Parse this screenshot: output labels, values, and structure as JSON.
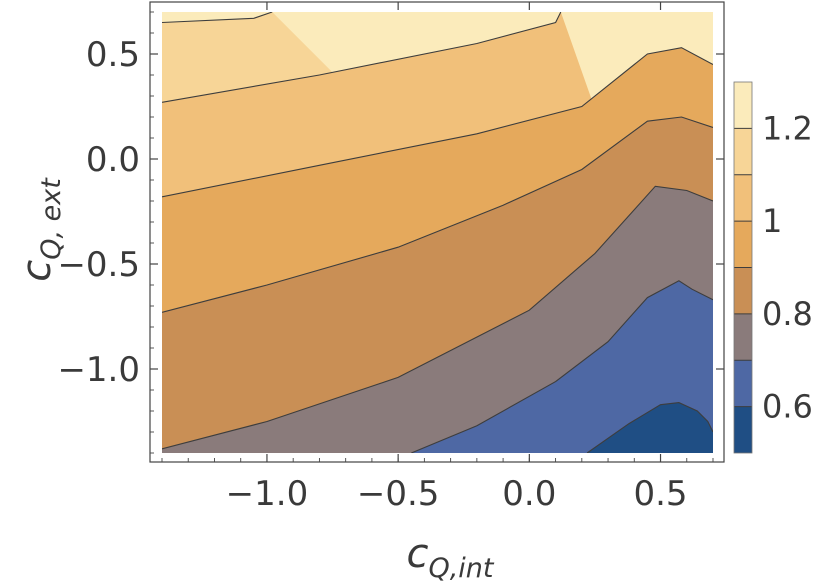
{
  "chart_data": {
    "type": "contour",
    "xlabel": "c",
    "xlabel_subscript": "Q,int",
    "ylabel": "c",
    "ylabel_subscript": "Q, ext",
    "xlim": [
      -1.4,
      0.7
    ],
    "ylim": [
      -1.4,
      0.7
    ],
    "xticks": [
      {
        "value": -1.0,
        "label": "−1.0"
      },
      {
        "value": -0.5,
        "label": "−0.5"
      },
      {
        "value": 0.0,
        "label": "0.0"
      },
      {
        "value": 0.5,
        "label": "0.5"
      }
    ],
    "yticks": [
      {
        "value": 0.5,
        "label": "0.5"
      },
      {
        "value": 0.0,
        "label": "0.0"
      },
      {
        "value": -0.5,
        "label": "−0.5"
      },
      {
        "value": -1.0,
        "label": "−1.0"
      }
    ],
    "colorbar": {
      "range": [
        0.5,
        1.3
      ],
      "levels": [
        0.5,
        0.6,
        0.7,
        0.8,
        0.9,
        1.0,
        1.1,
        1.2,
        1.3
      ],
      "band_colors": [
        "#1f4e84",
        "#4e68a4",
        "#8a7b7b",
        "#c98f55",
        "#e5a95c",
        "#f1c07a",
        "#f7d597",
        "#fbebbb"
      ],
      "ticks": [
        {
          "value": 1.2,
          "label": "1.2"
        },
        {
          "value": 1.0,
          "label": "1"
        },
        {
          "value": 0.8,
          "label": "0.8"
        },
        {
          "value": 0.6,
          "label": "0.6"
        }
      ]
    },
    "contours": [
      {
        "level": 1.2,
        "points": [
          [
            -1.4,
            0.65
          ],
          [
            -1.05,
            0.67
          ],
          [
            -0.98,
            0.7
          ]
        ]
      },
      {
        "level": 1.1,
        "points": [
          [
            -1.4,
            0.27
          ],
          [
            -0.8,
            0.4
          ],
          [
            -0.2,
            0.55
          ],
          [
            0.1,
            0.65
          ],
          [
            0.12,
            0.7
          ]
        ]
      },
      {
        "level": 1.0,
        "points": [
          [
            -1.4,
            -0.18
          ],
          [
            -0.8,
            -0.03
          ],
          [
            -0.2,
            0.12
          ],
          [
            0.2,
            0.25
          ],
          [
            0.45,
            0.5
          ],
          [
            0.58,
            0.53
          ],
          [
            0.7,
            0.45
          ]
        ]
      },
      {
        "level": 0.9,
        "points": [
          [
            -1.4,
            -0.73
          ],
          [
            -1.0,
            -0.6
          ],
          [
            -0.5,
            -0.42
          ],
          [
            -0.1,
            -0.22
          ],
          [
            0.2,
            -0.05
          ],
          [
            0.45,
            0.18
          ],
          [
            0.58,
            0.2
          ],
          [
            0.7,
            0.15
          ]
        ]
      },
      {
        "level": 0.8,
        "points": [
          [
            -1.4,
            -1.38
          ],
          [
            -1.0,
            -1.25
          ],
          [
            -0.5,
            -1.04
          ],
          [
            0.0,
            -0.72
          ],
          [
            0.25,
            -0.45
          ],
          [
            0.48,
            -0.13
          ],
          [
            0.6,
            -0.15
          ],
          [
            0.7,
            -0.2
          ]
        ]
      },
      {
        "level": 0.7,
        "points": [
          [
            -0.45,
            -1.4
          ],
          [
            -0.2,
            -1.27
          ],
          [
            0.1,
            -1.06
          ],
          [
            0.3,
            -0.87
          ],
          [
            0.45,
            -0.66
          ],
          [
            0.57,
            -0.58
          ],
          [
            0.62,
            -0.62
          ],
          [
            0.7,
            -0.67
          ]
        ]
      },
      {
        "level": 0.6,
        "points": [
          [
            0.22,
            -1.4
          ],
          [
            0.38,
            -1.26
          ],
          [
            0.5,
            -1.17
          ],
          [
            0.57,
            -1.16
          ],
          [
            0.64,
            -1.2
          ],
          [
            0.68,
            -1.25
          ],
          [
            0.7,
            -1.3
          ]
        ]
      }
    ]
  }
}
